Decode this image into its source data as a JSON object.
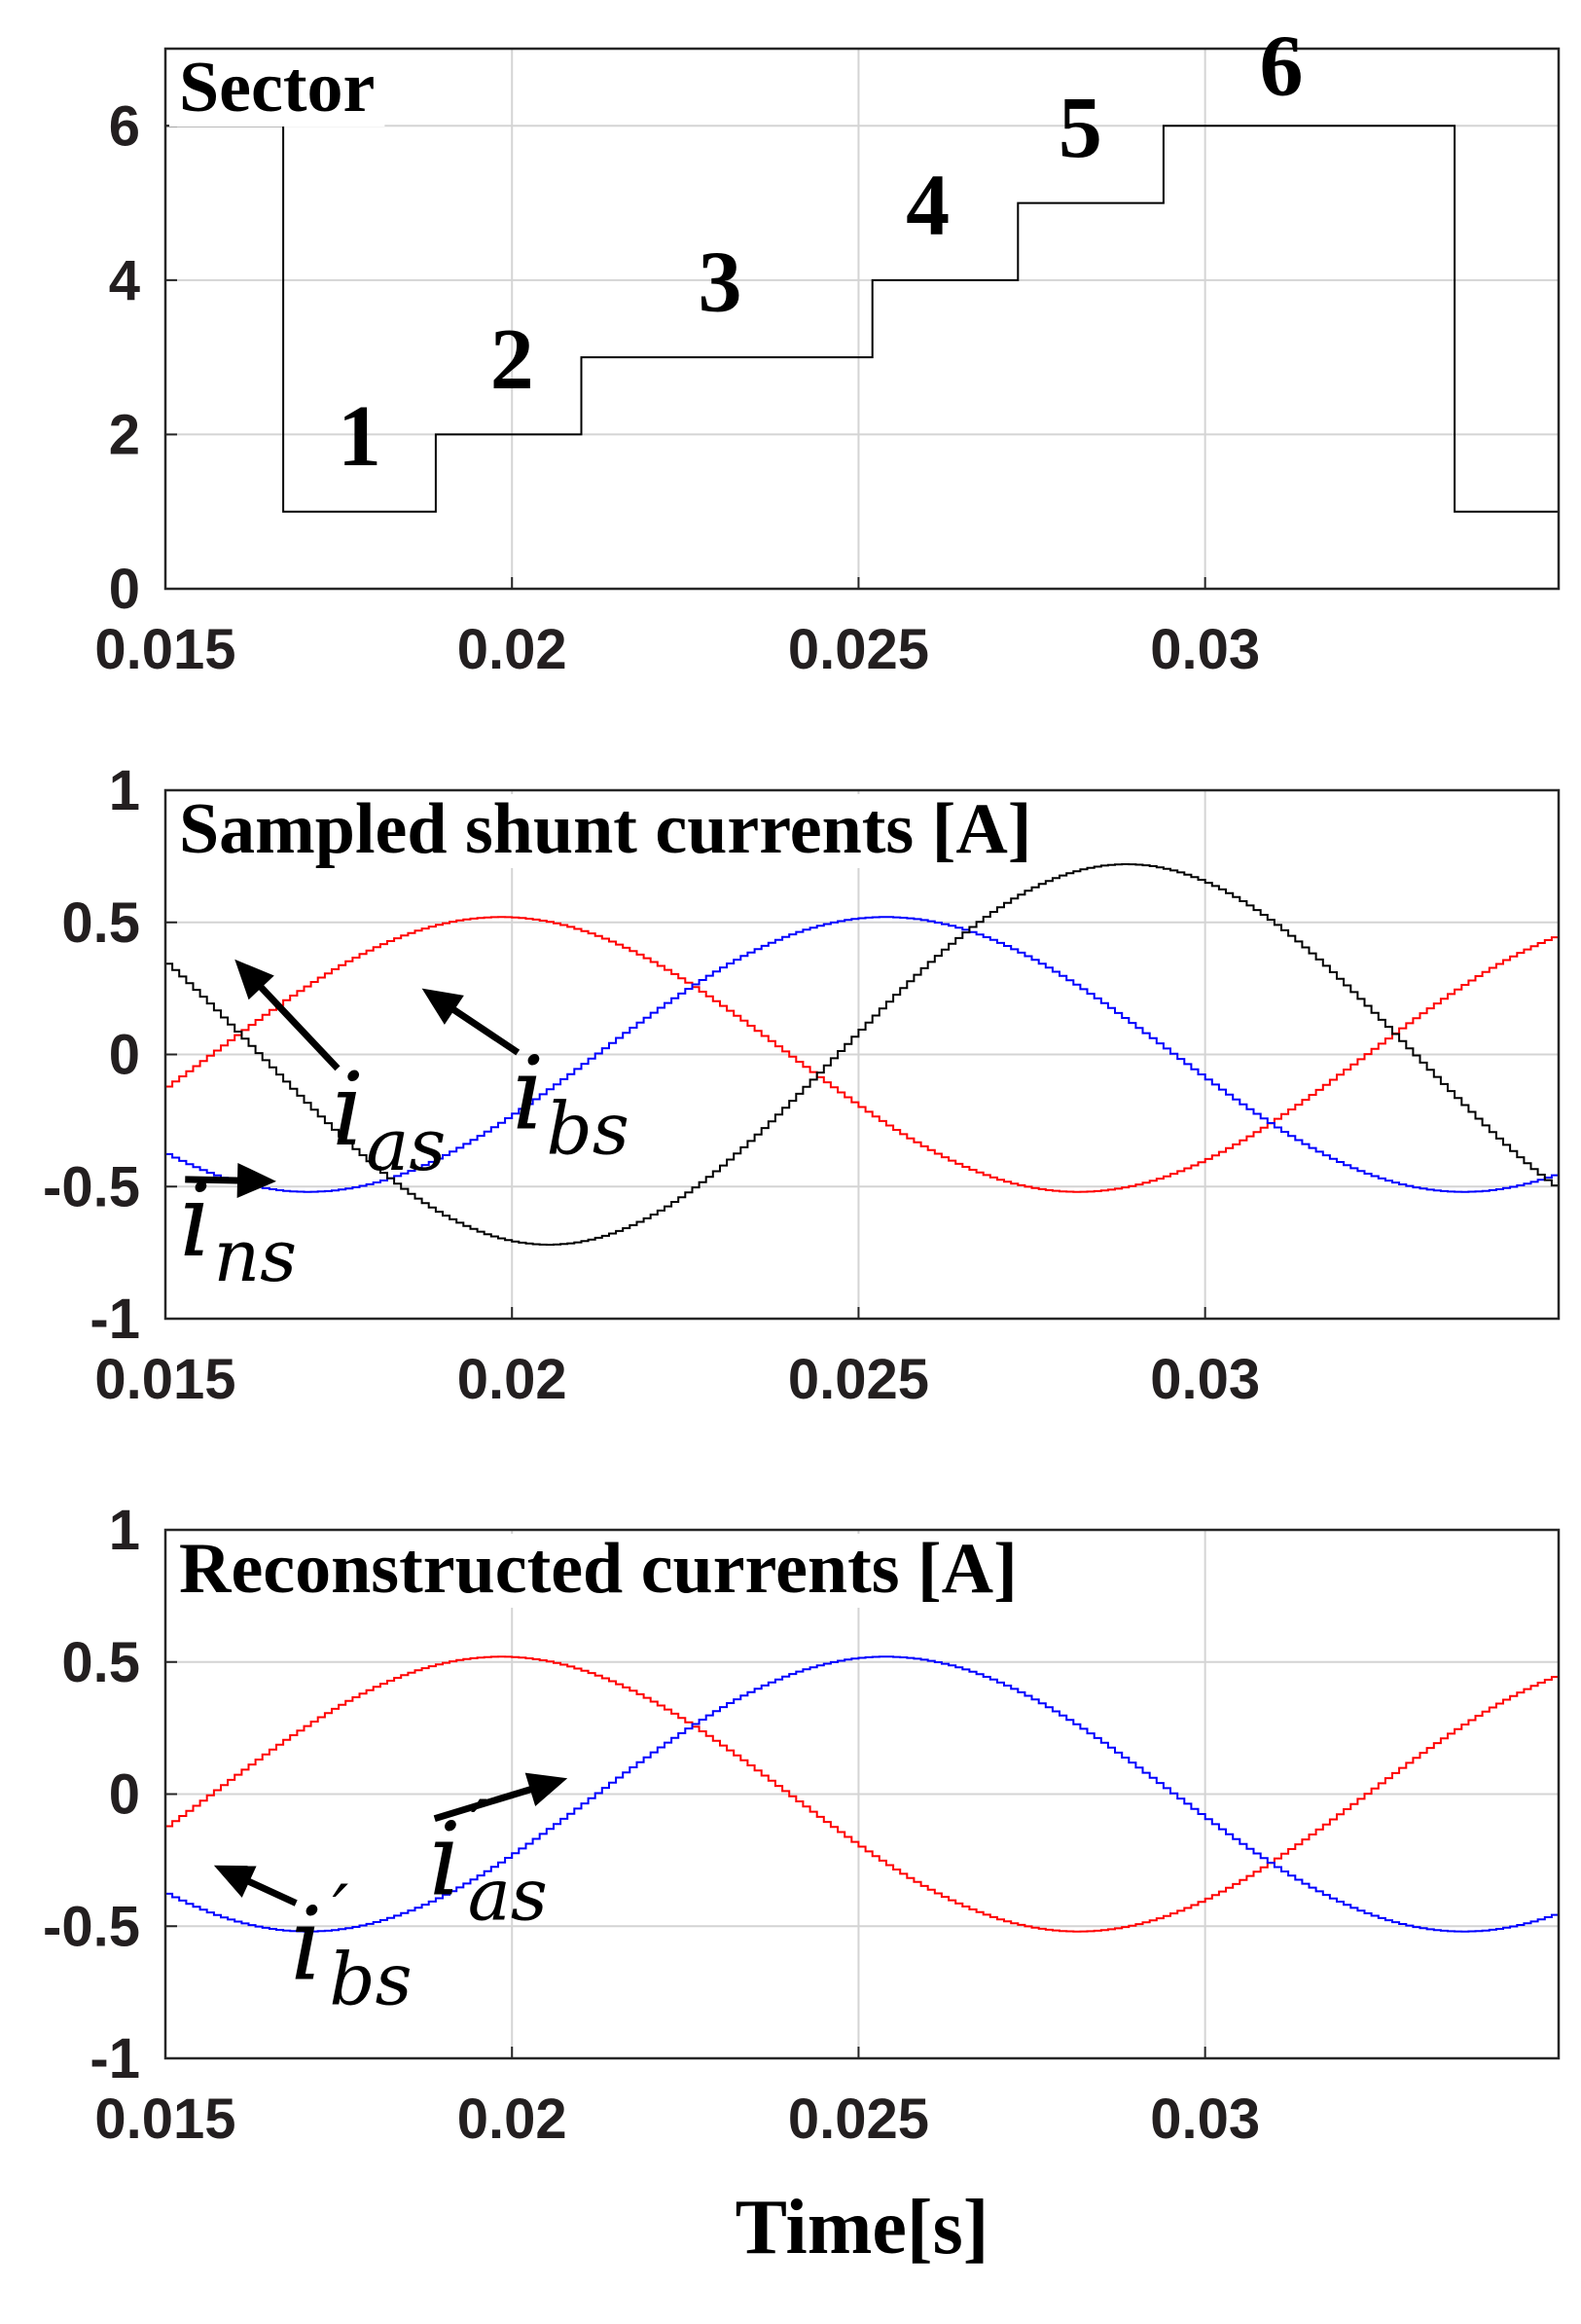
{
  "chart_data": [
    {
      "type": "line",
      "title": "Sector",
      "xlabel": "",
      "ylabel": "",
      "xlim": [
        0.015,
        0.0351
      ],
      "ylim": [
        0,
        7
      ],
      "x_ticks": [
        "0.015",
        "0.02",
        "0.025",
        "0.03"
      ],
      "y_ticks": [
        "0",
        "2",
        "4",
        "6"
      ],
      "grid": true,
      "series": [
        {
          "color": "#000000",
          "step": true,
          "points": [
            [
              0.015,
              6
            ],
            [
              0.0167,
              6
            ],
            [
              0.0167,
              1
            ],
            [
              0.0189,
              1
            ],
            [
              0.0189,
              2
            ],
            [
              0.021,
              2
            ],
            [
              0.021,
              3
            ],
            [
              0.0252,
              3
            ],
            [
              0.0252,
              4
            ],
            [
              0.0273,
              4
            ],
            [
              0.0273,
              5
            ],
            [
              0.0294,
              5
            ],
            [
              0.0294,
              6
            ],
            [
              0.0336,
              6
            ],
            [
              0.0336,
              1
            ],
            [
              0.0351,
              1
            ]
          ]
        }
      ],
      "annotations": [
        {
          "text": "1",
          "x": 0.0178,
          "y": 1.6
        },
        {
          "text": "2",
          "x": 0.02,
          "y": 2.6
        },
        {
          "text": "3",
          "x": 0.023,
          "y": 3.6
        },
        {
          "text": "4",
          "x": 0.026,
          "y": 4.6
        },
        {
          "text": "5",
          "x": 0.0282,
          "y": 5.6
        },
        {
          "text": "6",
          "x": 0.0311,
          "y": 6.4
        }
      ]
    },
    {
      "type": "line",
      "title": "Sampled shunt currents [A]",
      "xlabel": "",
      "ylabel": "",
      "xlim": [
        0.015,
        0.0351
      ],
      "ylim": [
        -1,
        1
      ],
      "x_ticks": [
        "0.015",
        "0.02",
        "0.025",
        "0.03"
      ],
      "y_ticks": [
        "-1",
        "-0.5",
        "0",
        "0.5",
        "1"
      ],
      "grid": true,
      "series": [
        {
          "color": "#ff0000",
          "amplitude": 0.52,
          "frequency_hz": 60,
          "phase_deg": 22.5,
          "sampling_s": 0.0001,
          "shape": "sampled i_as"
        },
        {
          "color": "#0000ff",
          "amplitude": 0.52,
          "frequency_hz": 60,
          "phase_deg": -97.5,
          "sampling_s": 0.0001,
          "shape": "sampled i_bs"
        },
        {
          "color": "#000000",
          "amplitude": 0.72,
          "frequency_hz": 60,
          "phase_deg": -172.5,
          "sampling_s": 0.0001,
          "shape": "sampled i_ns"
        }
      ],
      "annotations": [
        {
          "main": "i",
          "sub": "as",
          "prime": false,
          "target": [
            0.016,
            0.36
          ],
          "label": [
            0.0174,
            -0.34
          ]
        },
        {
          "main": "i",
          "sub": "bs",
          "prime": false,
          "target": [
            0.0187,
            0.25
          ],
          "label": [
            0.02,
            -0.28
          ]
        },
        {
          "main": "i",
          "sub": "ns",
          "prime": false,
          "target": [
            0.0166,
            -0.48
          ],
          "label": [
            0.0152,
            -0.76
          ]
        }
      ]
    },
    {
      "type": "line",
      "title": "Reconstructed currents [A]",
      "xlabel": "Time[s]",
      "ylabel": "",
      "xlim": [
        0.015,
        0.0351
      ],
      "ylim": [
        -1,
        1
      ],
      "x_ticks": [
        "0.015",
        "0.02",
        "0.025",
        "0.03"
      ],
      "y_ticks": [
        "-1",
        "-0.5",
        "0",
        "0.5",
        "1"
      ],
      "grid": true,
      "series": [
        {
          "color": "#ff0000",
          "amplitude": 0.52,
          "frequency_hz": 60,
          "phase_deg": 22.5,
          "sampling_s": 0.0001,
          "shape": "i_as'"
        },
        {
          "color": "#0000ff",
          "amplitude": 0.52,
          "frequency_hz": 60,
          "phase_deg": -97.5,
          "sampling_s": 0.0001,
          "shape": "i_bs'"
        }
      ],
      "annotations": [
        {
          "main": "i",
          "sub": "as",
          "prime": true,
          "target": [
            0.0208,
            0.06
          ],
          "label": [
            0.0188,
            -0.38
          ]
        },
        {
          "main": "i",
          "sub": "bs",
          "prime": true,
          "target": [
            0.0157,
            -0.27
          ],
          "label": [
            0.0168,
            -0.7
          ]
        }
      ]
    }
  ]
}
